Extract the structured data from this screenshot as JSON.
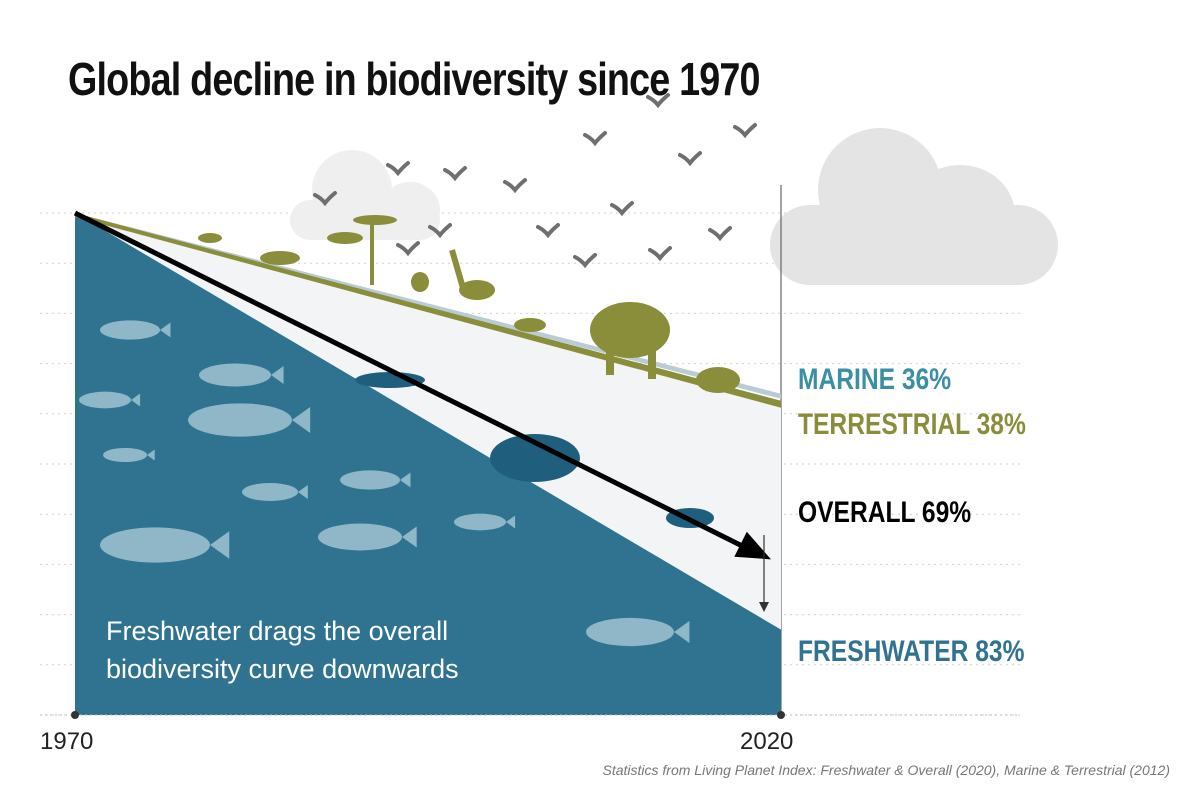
{
  "title": "Global decline in biodiversity since 1970",
  "caption": "Freshwater drags the overall biodiversity curve downwards",
  "source": "Statistics from Living Planet Index: Freshwater & Overall (2020), Marine & Terrestrial (2012)",
  "colors": {
    "freshwater": "#2f7391",
    "marine": "#3a8fa4",
    "terrestrial": "#8a8d3a",
    "overall": "#000000",
    "silhouette_light": "#8fb7c8",
    "bird": "#6f6f6f",
    "cloud": "#e3e3e3"
  },
  "chart_data": {
    "type": "line",
    "x": [
      1970,
      2020
    ],
    "xlim": [
      1970,
      2020
    ],
    "ylim": [
      0,
      100
    ],
    "tick_labels": [
      "1970",
      "2020"
    ],
    "series": [
      {
        "name": "MARINE 36%",
        "key": "marine",
        "values": [
          100,
          64
        ],
        "label": "MARINE 36%"
      },
      {
        "name": "TERRESTRIAL 38%",
        "key": "terrestrial",
        "values": [
          100,
          62
        ],
        "label": "TERRESTRIAL 38%"
      },
      {
        "name": "OVERALL 69%",
        "key": "overall",
        "values": [
          100,
          31
        ],
        "label": "OVERALL 69%"
      },
      {
        "name": "FRESHWATER 83%",
        "key": "freshwater",
        "values": [
          100,
          17
        ],
        "label": "FRESHWATER 83%"
      }
    ]
  }
}
